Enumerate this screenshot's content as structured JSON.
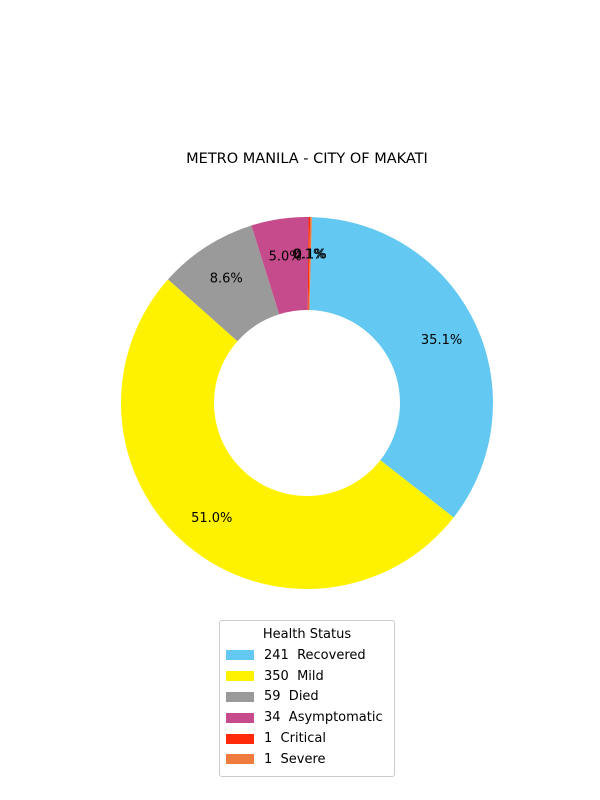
{
  "chart_data": {
    "type": "pie",
    "donut": true,
    "title": "METRO MANILA - CITY OF MAKATI",
    "legend_title": "Health Status",
    "legend_position": "bottom-center",
    "slices": [
      {
        "label": "Recovered",
        "value": 241,
        "color": "#63c8f2",
        "pct_label": "35.1%"
      },
      {
        "label": "Mild",
        "value": 350,
        "color": "#fff200",
        "pct_label": "51.0%"
      },
      {
        "label": "Died",
        "value": 59,
        "color": "#9a9a9a",
        "pct_label": "8.6%"
      },
      {
        "label": "Asymptomatic",
        "value": 34,
        "color": "#c54b8c",
        "pct_label": "5.0%"
      },
      {
        "label": "Critical",
        "value": 1,
        "color": "#ff2a0a",
        "pct_label": "0.1%"
      },
      {
        "label": "Severe",
        "value": 1,
        "color": "#f07b3f",
        "pct_label": "0.1%"
      }
    ],
    "legend_entries": [
      "241  Recovered",
      "350  Mild",
      "59  Died",
      "34  Asymptomatic",
      "1  Critical",
      "1  Severe"
    ]
  }
}
